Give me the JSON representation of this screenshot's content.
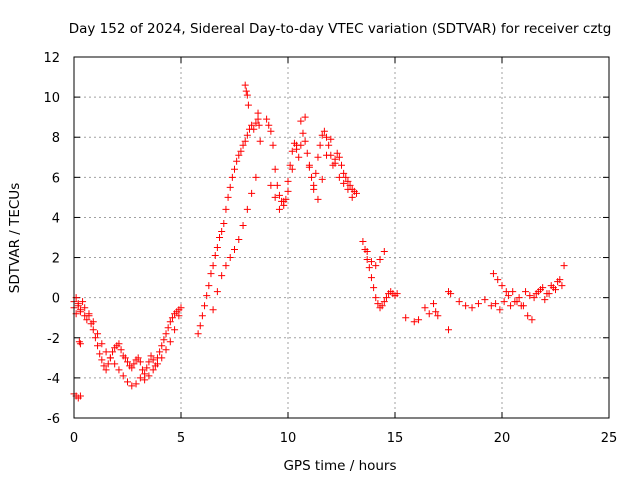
{
  "chart_data": {
    "type": "scatter",
    "title": "Day 152 of 2024, Sidereal Day-to-day VTEC variation (SDTVAR) for receiver cztg",
    "xlabel": "GPS time / hours",
    "ylabel": "SDTVAR / TECUs",
    "xlim": [
      0,
      25
    ],
    "ylim": [
      -6,
      12
    ],
    "xticks": [
      0,
      5,
      10,
      15,
      20,
      25
    ],
    "yticks": [
      -6,
      -4,
      -2,
      0,
      2,
      4,
      6,
      8,
      10,
      12
    ],
    "xtick_labels": [
      "0",
      "5",
      "10",
      "15",
      "20",
      "25"
    ],
    "ytick_labels": [
      "-6",
      "-4",
      "-2",
      "0",
      "2",
      "4",
      "6",
      "8",
      "10",
      "12"
    ],
    "grid": true,
    "marker": "+",
    "color": "#ff0000",
    "series": [
      {
        "name": "cztg",
        "x": [
          0.0,
          0.1,
          0.2,
          0.3,
          0.4,
          0.5,
          0.6,
          0.7,
          0.8,
          0.9,
          1.0,
          1.1,
          1.2,
          1.3,
          1.4,
          1.5,
          1.6,
          1.7,
          1.8,
          1.9,
          2.0,
          2.1,
          2.2,
          2.3,
          2.4,
          2.5,
          2.6,
          2.7,
          2.8,
          2.9,
          3.0,
          3.1,
          3.2,
          3.3,
          3.4,
          3.5,
          3.6,
          3.7,
          3.8,
          3.9,
          4.0,
          4.1,
          4.2,
          4.3,
          4.4,
          4.5,
          4.6,
          4.7,
          4.8,
          4.9,
          5.0,
          0.0,
          0.1,
          0.2,
          0.3,
          0.5,
          0.7,
          0.9,
          1.1,
          1.3,
          1.5,
          1.7,
          1.9,
          2.1,
          2.3,
          2.5,
          2.7,
          2.9,
          3.1,
          3.3,
          3.5,
          3.7,
          3.9,
          4.1,
          4.3,
          4.5,
          4.7,
          4.9,
          0.0,
          0.1,
          0.2,
          0.3,
          0.25,
          0.3,
          5.8,
          5.9,
          6.0,
          6.1,
          6.2,
          6.3,
          6.4,
          6.5,
          6.6,
          6.7,
          6.8,
          6.9,
          7.0,
          7.1,
          7.2,
          7.3,
          7.4,
          7.5,
          7.6,
          7.7,
          7.8,
          7.9,
          8.0,
          8.1,
          8.2,
          8.3,
          8.4,
          8.5,
          8.6,
          6.5,
          6.7,
          6.9,
          7.1,
          7.3,
          7.5,
          7.7,
          7.9,
          8.1,
          8.3,
          8.5,
          8.0,
          8.05,
          8.1,
          8.15,
          8.6,
          8.65,
          8.7,
          9.0,
          9.1,
          9.2,
          9.3,
          9.4,
          9.5,
          9.6,
          9.7,
          9.8,
          9.9,
          10.0,
          10.1,
          10.2,
          10.3,
          10.4,
          10.5,
          10.6,
          10.7,
          10.8,
          10.9,
          11.0,
          11.1,
          11.2,
          11.3,
          11.4,
          11.5,
          11.6,
          11.7,
          11.8,
          11.9,
          12.0,
          12.1,
          12.2,
          12.3,
          12.4,
          12.5,
          12.6,
          12.7,
          12.8,
          12.9,
          13.0,
          13.1,
          13.2,
          9.2,
          9.4,
          9.6,
          9.8,
          10.0,
          10.2,
          10.4,
          10.6,
          10.8,
          11.0,
          11.2,
          11.4,
          11.6,
          11.8,
          12.0,
          12.2,
          12.4,
          12.6,
          12.8,
          13.0,
          13.5,
          13.6,
          13.7,
          13.8,
          13.9,
          14.0,
          14.1,
          14.2,
          14.3,
          14.4,
          14.5,
          14.6,
          14.7,
          14.8,
          14.9,
          15.0,
          15.1,
          13.7,
          13.9,
          14.1,
          14.3,
          14.5,
          15.5,
          15.9,
          16.1,
          16.4,
          16.6,
          16.8,
          16.9,
          17.0,
          17.5,
          17.6,
          17.5,
          18.0,
          18.3,
          18.6,
          18.9,
          19.2,
          19.5,
          19.7,
          19.9,
          20.1,
          20.3,
          20.5,
          20.7,
          20.9,
          21.1,
          21.3,
          21.5,
          21.7,
          21.9,
          22.1,
          22.3,
          22.5,
          22.7,
          22.9,
          19.6,
          19.8,
          20.0,
          20.2,
          20.4,
          20.6,
          20.8,
          21.0,
          21.2,
          21.4,
          21.6,
          21.8,
          22.0,
          22.2,
          22.4,
          22.6,
          22.8
        ],
        "y": [
          -0.5,
          -0.8,
          -0.3,
          -0.6,
          -0.2,
          -0.9,
          -1.1,
          -0.8,
          -1.3,
          -1.6,
          -2.0,
          -2.4,
          -2.8,
          -3.1,
          -3.4,
          -3.6,
          -3.3,
          -3.0,
          -2.7,
          -2.5,
          -2.4,
          -2.3,
          -2.6,
          -2.9,
          -3.0,
          -3.2,
          -3.4,
          -3.5,
          -3.3,
          -3.1,
          -3.0,
          -3.2,
          -3.6,
          -3.8,
          -3.5,
          -3.2,
          -2.9,
          -3.1,
          -3.4,
          -3.0,
          -2.7,
          -2.4,
          -2.1,
          -1.8,
          -1.5,
          -1.2,
          -1.0,
          -0.8,
          -0.7,
          -0.6,
          -0.5,
          -0.2,
          0.0,
          -0.4,
          -0.7,
          -0.5,
          -0.9,
          -1.2,
          -1.8,
          -2.3,
          -2.7,
          -3.0,
          -3.3,
          -3.6,
          -3.9,
          -4.2,
          -4.4,
          -4.3,
          -4.0,
          -4.1,
          -3.9,
          -3.6,
          -3.3,
          -3.0,
          -2.6,
          -2.2,
          -1.6,
          -0.9,
          -4.8,
          -4.9,
          -5.0,
          -4.9,
          -2.2,
          -2.3,
          -1.8,
          -1.4,
          -0.9,
          -0.4,
          0.1,
          0.6,
          1.2,
          1.6,
          2.1,
          2.5,
          3.0,
          3.3,
          3.7,
          4.4,
          5.0,
          5.5,
          6.0,
          6.4,
          6.8,
          7.1,
          7.3,
          7.6,
          7.8,
          8.1,
          8.4,
          8.6,
          8.4,
          8.7,
          8.9,
          -0.6,
          0.3,
          1.1,
          1.6,
          2.0,
          2.4,
          2.9,
          3.6,
          4.4,
          5.2,
          6.0,
          10.6,
          10.3,
          10.1,
          9.6,
          9.2,
          8.6,
          7.8,
          8.9,
          8.6,
          8.3,
          7.6,
          6.4,
          5.6,
          5.1,
          4.8,
          4.6,
          4.9,
          5.8,
          6.6,
          7.3,
          7.7,
          7.4,
          7.0,
          7.6,
          8.2,
          7.8,
          7.2,
          6.6,
          6.0,
          5.6,
          6.2,
          7.0,
          7.6,
          8.1,
          8.3,
          8.0,
          7.6,
          7.1,
          6.6,
          6.9,
          7.2,
          7.0,
          6.6,
          6.2,
          6.0,
          5.8,
          5.6,
          5.4,
          5.3,
          5.2,
          5.6,
          5.0,
          4.4,
          4.8,
          5.3,
          6.4,
          7.6,
          8.8,
          9.0,
          6.5,
          5.4,
          4.9,
          5.9,
          7.1,
          7.9,
          6.7,
          6.0,
          5.7,
          5.4,
          5.0,
          2.8,
          2.4,
          1.9,
          1.5,
          1.0,
          0.5,
          0.0,
          -0.3,
          -0.5,
          -0.4,
          -0.2,
          0.0,
          0.2,
          0.3,
          0.2,
          0.1,
          0.2,
          2.3,
          1.8,
          1.6,
          1.9,
          2.3,
          -1.0,
          -1.2,
          -1.1,
          -0.5,
          -0.8,
          -0.3,
          -0.7,
          -0.9,
          0.3,
          0.2,
          -1.6,
          -0.2,
          -0.4,
          -0.5,
          -0.3,
          -0.1,
          -0.4,
          -0.3,
          -0.6,
          -0.2,
          0.1,
          0.3,
          -0.2,
          -0.4,
          0.3,
          0.1,
          0.0,
          0.3,
          0.5,
          0.2,
          0.6,
          0.4,
          0.9,
          1.6,
          1.2,
          0.9,
          0.6,
          0.3,
          -0.4,
          -0.2,
          0.0,
          -0.4,
          -0.9,
          -1.1,
          0.2,
          0.4,
          -0.1,
          0.2,
          0.5,
          0.8,
          0.6
        ]
      }
    ]
  }
}
